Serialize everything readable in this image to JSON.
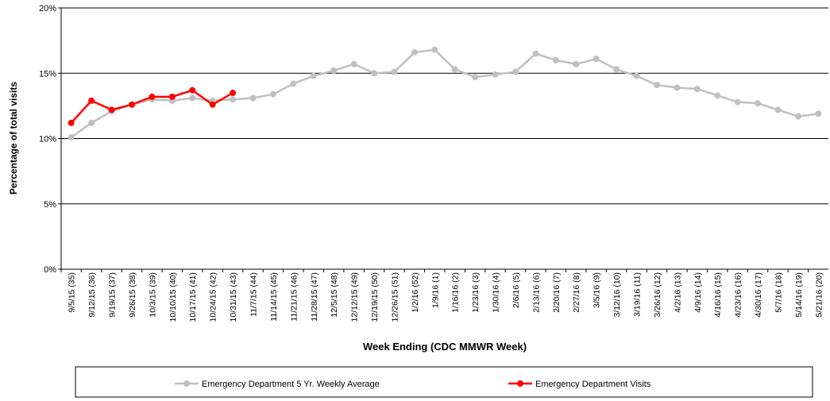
{
  "chart_data": {
    "type": "line",
    "x_label": "Week Ending (CDC MMWR Week)",
    "y_label": "Percentage of total visits",
    "categories": [
      "9/5/15 (35)",
      "9/12/15 (36)",
      "9/19/15 (37)",
      "9/26/15 (38)",
      "10/3/15 (39)",
      "10/10/15 (40)",
      "10/17/15 (41)",
      "10/24/15 (42)",
      "10/31/15 (43)",
      "11/7/15 (44)",
      "11/14/15 (45)",
      "11/21/15 (46)",
      "11/28/15 (47)",
      "12/5/15 (48)",
      "12/12/15 (49)",
      "12/19/15 (50)",
      "12/26/15 (51)",
      "1/2/16 (52)",
      "1/9/16 (1)",
      "1/16/16 (2)",
      "1/23/16 (3)",
      "1/30/16 (4)",
      "2/6/16 (5)",
      "2/13/16 (6)",
      "2/20/16 (7)",
      "2/27/16 (8)",
      "3/5/16 (9)",
      "3/12/16 (10)",
      "3/19/16 (11)",
      "3/26/16 (12)",
      "4/2/16 (13)",
      "4/9/16 (14)",
      "4/16/16 (15)",
      "4/23/16 (16)",
      "4/30/16 (17)",
      "5/7/16 (18)",
      "5/14/16 (19)",
      "5/21/16 (20)"
    ],
    "series": [
      {
        "name": "Emergency Department 5 Yr. Weekly Average",
        "color": "#c0c0c0",
        "values": [
          10.1,
          11.2,
          12.1,
          12.6,
          13.0,
          12.9,
          13.1,
          12.9,
          13.0,
          13.1,
          13.4,
          14.2,
          14.8,
          15.2,
          15.7,
          15.0,
          15.1,
          16.6,
          16.8,
          15.3,
          14.7,
          14.9,
          15.1,
          16.5,
          16.0,
          15.7,
          16.1,
          15.3,
          14.8,
          14.1,
          13.9,
          13.8,
          13.3,
          12.8,
          12.7,
          12.2,
          11.7,
          11.9
        ]
      },
      {
        "name": "Emergency Department Visits",
        "color": "#ff0000",
        "values": [
          11.2,
          12.9,
          12.2,
          12.6,
          13.2,
          13.2,
          13.7,
          12.6,
          13.5,
          null,
          null,
          null,
          null,
          null,
          null,
          null,
          null,
          null,
          null,
          null,
          null,
          null,
          null,
          null,
          null,
          null,
          null,
          null,
          null,
          null,
          null,
          null,
          null,
          null,
          null,
          null,
          null,
          null
        ]
      }
    ],
    "ylim": [
      0,
      20
    ],
    "yticks": [
      {
        "value": 0,
        "label": "0%"
      },
      {
        "value": 5,
        "label": "5%"
      },
      {
        "value": 10,
        "label": "10%"
      },
      {
        "value": 15,
        "label": "15%"
      },
      {
        "value": 20,
        "label": "20%"
      }
    ],
    "grid": true,
    "legend": "bottom"
  }
}
